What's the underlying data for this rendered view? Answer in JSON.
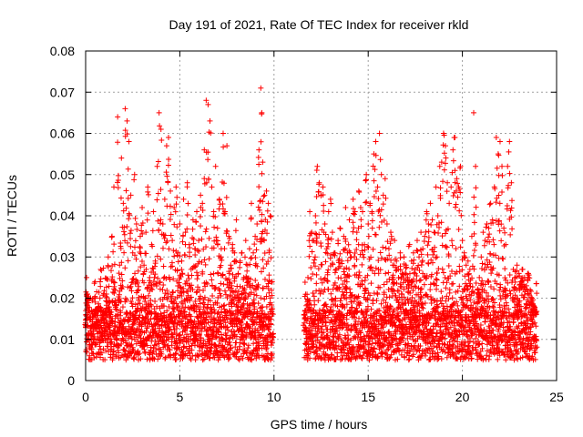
{
  "chart_data": {
    "type": "scatter",
    "title": "Day 191 of 2021, Rate Of TEC Index for receiver rkld",
    "xlabel": "GPS time / hours",
    "ylabel": "ROTI / TECUs",
    "xlim": [
      0,
      25
    ],
    "ylim": [
      0,
      0.08
    ],
    "xticks": [
      0,
      5,
      10,
      15,
      20,
      25
    ],
    "yticks": [
      0,
      0.01,
      0.02,
      0.03,
      0.04,
      0.05,
      0.06,
      0.07,
      0.08
    ],
    "xtick_labels": [
      "0",
      "5",
      "10",
      "15",
      "20",
      "25"
    ],
    "ytick_labels": [
      "0",
      "0.01",
      "0.02",
      "0.03",
      "0.04",
      "0.05",
      "0.06",
      "0.07",
      "0.08"
    ],
    "grid": true,
    "marker": "+",
    "color": "#ff0000",
    "series": [
      {
        "name": "ROTI",
        "points": [
          [
            0.0,
            0.013
          ],
          [
            0.05,
            0.025
          ],
          [
            0.1,
            0.021
          ],
          [
            0.2,
            0.017
          ],
          [
            0.3,
            0.01
          ],
          [
            0.4,
            0.013
          ],
          [
            0.5,
            0.024
          ],
          [
            0.6,
            0.012
          ],
          [
            0.7,
            0.018
          ],
          [
            0.8,
            0.027
          ],
          [
            0.9,
            0.015
          ],
          [
            1.0,
            0.011
          ],
          [
            1.1,
            0.021
          ],
          [
            1.2,
            0.03
          ],
          [
            1.3,
            0.013
          ],
          [
            1.4,
            0.035
          ],
          [
            1.5,
            0.047
          ],
          [
            1.6,
            0.019
          ],
          [
            1.7,
            0.064
          ],
          [
            1.8,
            0.028
          ],
          [
            1.9,
            0.054
          ],
          [
            2.0,
            0.043
          ],
          [
            2.1,
            0.066
          ],
          [
            2.2,
            0.063
          ],
          [
            2.3,
            0.058
          ],
          [
            2.4,
            0.045
          ],
          [
            2.5,
            0.031
          ],
          [
            2.6,
            0.05
          ],
          [
            2.7,
            0.038
          ],
          [
            2.8,
            0.022
          ],
          [
            2.9,
            0.035
          ],
          [
            3.0,
            0.042
          ],
          [
            3.1,
            0.028
          ],
          [
            3.2,
            0.036
          ],
          [
            3.3,
            0.047
          ],
          [
            3.4,
            0.025
          ],
          [
            3.5,
            0.033
          ],
          [
            3.6,
            0.041
          ],
          [
            3.7,
            0.029
          ],
          [
            3.8,
            0.052
          ],
          [
            3.9,
            0.065
          ],
          [
            4.0,
            0.061
          ],
          [
            4.1,
            0.038
          ],
          [
            4.2,
            0.044
          ],
          [
            4.3,
            0.057
          ],
          [
            4.4,
            0.059
          ],
          [
            4.5,
            0.046
          ],
          [
            4.6,
            0.034
          ],
          [
            4.7,
            0.042
          ],
          [
            4.8,
            0.047
          ],
          [
            4.9,
            0.031
          ],
          [
            5.0,
            0.038
          ],
          [
            5.1,
            0.029
          ],
          [
            5.2,
            0.044
          ],
          [
            5.3,
            0.036
          ],
          [
            5.4,
            0.048
          ],
          [
            5.5,
            0.033
          ],
          [
            5.6,
            0.027
          ],
          [
            5.7,
            0.039
          ],
          [
            5.8,
            0.032
          ],
          [
            5.9,
            0.041
          ],
          [
            6.0,
            0.034
          ],
          [
            6.1,
            0.045
          ],
          [
            6.2,
            0.043
          ],
          [
            6.3,
            0.056
          ],
          [
            6.4,
            0.068
          ],
          [
            6.5,
            0.067
          ],
          [
            6.6,
            0.063
          ],
          [
            6.7,
            0.047
          ],
          [
            6.8,
            0.041
          ],
          [
            6.9,
            0.052
          ],
          [
            7.0,
            0.037
          ],
          [
            7.1,
            0.044
          ],
          [
            7.2,
            0.032
          ],
          [
            7.3,
            0.06
          ],
          [
            7.4,
            0.041
          ],
          [
            7.5,
            0.057
          ],
          [
            7.6,
            0.035
          ],
          [
            7.7,
            0.028
          ],
          [
            7.8,
            0.033
          ],
          [
            7.9,
            0.031
          ],
          [
            8.0,
            0.039
          ],
          [
            8.1,
            0.026
          ],
          [
            8.2,
            0.029
          ],
          [
            8.3,
            0.031
          ],
          [
            8.4,
            0.025
          ],
          [
            8.5,
            0.034
          ],
          [
            8.6,
            0.028
          ],
          [
            8.7,
            0.032
          ],
          [
            8.8,
            0.043
          ],
          [
            8.9,
            0.031
          ],
          [
            9.0,
            0.035
          ],
          [
            9.1,
            0.038
          ],
          [
            9.2,
            0.056
          ],
          [
            9.3,
            0.071
          ],
          [
            9.35,
            0.065
          ],
          [
            9.4,
            0.053
          ],
          [
            9.5,
            0.045
          ],
          [
            9.6,
            0.046
          ],
          [
            9.7,
            0.043
          ],
          [
            9.8,
            0.04
          ],
          [
            9.9,
            0.024
          ],
          [
            11.6,
            0.012
          ],
          [
            11.7,
            0.009
          ],
          [
            11.8,
            0.025
          ],
          [
            11.9,
            0.041
          ],
          [
            12.0,
            0.036
          ],
          [
            12.1,
            0.034
          ],
          [
            12.2,
            0.04
          ],
          [
            12.3,
            0.052
          ],
          [
            12.4,
            0.048
          ],
          [
            12.5,
            0.045
          ],
          [
            12.6,
            0.047
          ],
          [
            12.7,
            0.038
          ],
          [
            12.8,
            0.032
          ],
          [
            12.9,
            0.041
          ],
          [
            13.0,
            0.044
          ],
          [
            13.1,
            0.036
          ],
          [
            13.2,
            0.031
          ],
          [
            13.3,
            0.027
          ],
          [
            13.4,
            0.034
          ],
          [
            13.5,
            0.037
          ],
          [
            13.6,
            0.029
          ],
          [
            13.7,
            0.035
          ],
          [
            13.8,
            0.042
          ],
          [
            13.9,
            0.031
          ],
          [
            14.0,
            0.039
          ],
          [
            14.1,
            0.03
          ],
          [
            14.2,
            0.044
          ],
          [
            14.3,
            0.041
          ],
          [
            14.4,
            0.036
          ],
          [
            14.5,
            0.046
          ],
          [
            14.6,
            0.042
          ],
          [
            14.7,
            0.041
          ],
          [
            14.8,
            0.033
          ],
          [
            14.9,
            0.05
          ],
          [
            15.0,
            0.038
          ],
          [
            15.1,
            0.043
          ],
          [
            15.2,
            0.041
          ],
          [
            15.3,
            0.055
          ],
          [
            15.4,
            0.058
          ],
          [
            15.5,
            0.047
          ],
          [
            15.6,
            0.06
          ],
          [
            15.7,
            0.05
          ],
          [
            15.8,
            0.045
          ],
          [
            15.9,
            0.049
          ],
          [
            16.0,
            0.038
          ],
          [
            16.1,
            0.032
          ],
          [
            16.2,
            0.036
          ],
          [
            16.3,
            0.028
          ],
          [
            16.4,
            0.034
          ],
          [
            16.5,
            0.029
          ],
          [
            16.6,
            0.027
          ],
          [
            16.7,
            0.031
          ],
          [
            16.8,
            0.026
          ],
          [
            16.9,
            0.03
          ],
          [
            17.0,
            0.028
          ],
          [
            17.1,
            0.025
          ],
          [
            17.2,
            0.033
          ],
          [
            17.3,
            0.029
          ],
          [
            17.4,
            0.031
          ],
          [
            17.5,
            0.027
          ],
          [
            17.6,
            0.034
          ],
          [
            17.7,
            0.03
          ],
          [
            17.8,
            0.036
          ],
          [
            17.9,
            0.032
          ],
          [
            18.0,
            0.035
          ],
          [
            18.1,
            0.041
          ],
          [
            18.2,
            0.038
          ],
          [
            18.3,
            0.043
          ],
          [
            18.4,
            0.039
          ],
          [
            18.5,
            0.036
          ],
          [
            18.6,
            0.047
          ],
          [
            18.7,
            0.04
          ],
          [
            18.8,
            0.052
          ],
          [
            18.9,
            0.053
          ],
          [
            19.0,
            0.06
          ],
          [
            19.1,
            0.057
          ],
          [
            19.2,
            0.048
          ],
          [
            19.3,
            0.043
          ],
          [
            19.4,
            0.047
          ],
          [
            19.5,
            0.056
          ],
          [
            19.6,
            0.059
          ],
          [
            19.7,
            0.049
          ],
          [
            19.8,
            0.047
          ],
          [
            19.9,
            0.052
          ],
          [
            20.0,
            0.034
          ],
          [
            20.1,
            0.031
          ],
          [
            20.2,
            0.028
          ],
          [
            20.3,
            0.029
          ],
          [
            20.4,
            0.027
          ],
          [
            20.5,
            0.035
          ],
          [
            20.6,
            0.065
          ],
          [
            20.7,
            0.052
          ],
          [
            20.8,
            0.022
          ],
          [
            20.9,
            0.025
          ],
          [
            21.0,
            0.03
          ],
          [
            21.1,
            0.036
          ],
          [
            21.2,
            0.034
          ],
          [
            21.3,
            0.038
          ],
          [
            21.4,
            0.037
          ],
          [
            21.5,
            0.043
          ],
          [
            21.6,
            0.039
          ],
          [
            21.7,
            0.047
          ],
          [
            21.8,
            0.059
          ],
          [
            21.9,
            0.055
          ],
          [
            22.0,
            0.058
          ],
          [
            22.1,
            0.052
          ],
          [
            22.2,
            0.037
          ],
          [
            22.3,
            0.033
          ],
          [
            22.4,
            0.052
          ],
          [
            22.5,
            0.058
          ],
          [
            22.6,
            0.048
          ],
          [
            22.7,
            0.027
          ],
          [
            22.8,
            0.025
          ],
          [
            22.9,
            0.028
          ],
          [
            23.0,
            0.026
          ],
          [
            23.1,
            0.024
          ],
          [
            23.2,
            0.027
          ],
          [
            23.3,
            0.025
          ],
          [
            23.4,
            0.023
          ],
          [
            23.5,
            0.026
          ],
          [
            23.6,
            0.022
          ],
          [
            23.7,
            0.02
          ],
          [
            23.8,
            0.018
          ],
          [
            23.9,
            0.016
          ]
        ],
        "baseline_band": {
          "y_min": 0.005,
          "y_max": 0.017,
          "segments": [
            [
              0.0,
              9.95
            ],
            [
              11.6,
              23.95
            ]
          ]
        }
      }
    ]
  }
}
